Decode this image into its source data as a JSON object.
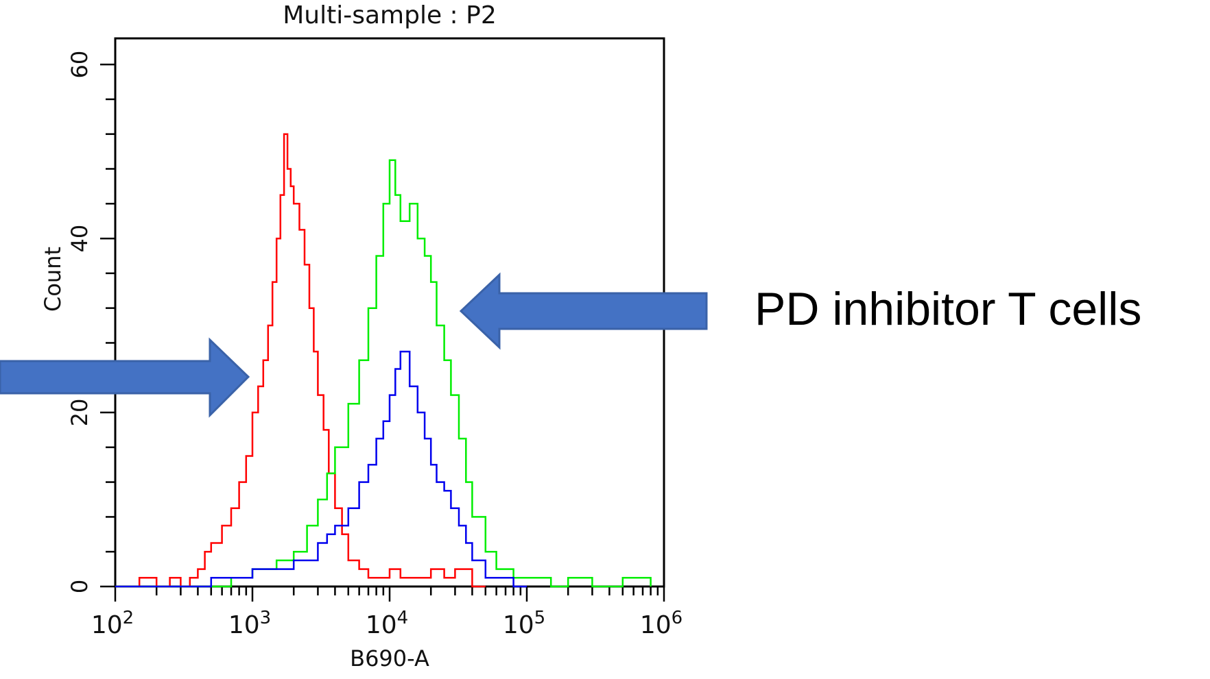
{
  "chart_data": {
    "type": "line",
    "title": "Multi-sample : P2",
    "xlabel": "B690-A",
    "ylabel": "Count",
    "x_scale": "log",
    "xlim": [
      100,
      1000000
    ],
    "ylim": [
      0,
      63
    ],
    "x_ticks": [
      {
        "mantissa": "10",
        "exp": "2",
        "value": 100
      },
      {
        "mantissa": "10",
        "exp": "3",
        "value": 1000
      },
      {
        "mantissa": "10",
        "exp": "4",
        "value": 10000
      },
      {
        "mantissa": "10",
        "exp": "5",
        "value": 100000
      },
      {
        "mantissa": "10",
        "exp": "6",
        "value": 1000000
      }
    ],
    "y_ticks": [
      0,
      20,
      40,
      60
    ],
    "grid": false,
    "series": [
      {
        "color": "#ff0000",
        "x": [
          100,
          150,
          200,
          250,
          300,
          350,
          400,
          450,
          500,
          600,
          700,
          800,
          900,
          1000,
          1100,
          1200,
          1300,
          1400,
          1500,
          1600,
          1700,
          1800,
          1900,
          2000,
          2200,
          2400,
          2600,
          2800,
          3000,
          3300,
          3600,
          4000,
          4500,
          5000,
          6000,
          7000,
          8000,
          10000,
          12000,
          15000,
          20000,
          25000,
          30000,
          40000,
          50000
        ],
        "y": [
          0,
          1,
          0,
          1,
          0,
          1,
          2,
          4,
          5,
          7,
          9,
          12,
          15,
          20,
          23,
          26,
          30,
          35,
          40,
          45,
          52,
          48,
          46,
          44,
          41,
          37,
          32,
          27,
          22,
          18,
          13,
          9,
          6,
          3,
          2,
          1,
          1,
          2,
          1,
          1,
          2,
          1,
          2,
          0,
          0
        ]
      },
      {
        "color": "#00ee00",
        "x": [
          100,
          300,
          500,
          700,
          900,
          1000,
          1200,
          1500,
          2000,
          2500,
          3000,
          3500,
          4000,
          5000,
          6000,
          7000,
          8000,
          9000,
          10000,
          11000,
          12000,
          14000,
          16000,
          18000,
          20000,
          22000,
          25000,
          28000,
          32000,
          36000,
          40000,
          50000,
          60000,
          80000,
          100000,
          150000,
          200000,
          300000,
          500000,
          800000
        ],
        "y": [
          0,
          0,
          0,
          1,
          1,
          2,
          2,
          3,
          4,
          7,
          10,
          13,
          16,
          21,
          26,
          32,
          38,
          44,
          49,
          45,
          42,
          44,
          40,
          38,
          35,
          30,
          26,
          22,
          17,
          12,
          8,
          4,
          2,
          1,
          1,
          0,
          1,
          0,
          1,
          0
        ]
      },
      {
        "color": "#0000ee",
        "x": [
          100,
          300,
          500,
          800,
          1000,
          1200,
          1500,
          2000,
          2500,
          3000,
          3500,
          4000,
          5000,
          6000,
          7000,
          8000,
          9000,
          10000,
          11000,
          12000,
          14000,
          16000,
          18000,
          20000,
          22000,
          25000,
          28000,
          32000,
          36000,
          40000,
          50000,
          60000,
          80000,
          100000
        ],
        "y": [
          0,
          0,
          1,
          1,
          2,
          2,
          2,
          3,
          3,
          5,
          6,
          7,
          9,
          12,
          14,
          17,
          19,
          22,
          25,
          27,
          23,
          20,
          17,
          14,
          12,
          11,
          9,
          7,
          5,
          3,
          1,
          1,
          0,
          0
        ]
      }
    ]
  },
  "annotation": {
    "label": "PD inhibitor T cells",
    "arrow_color": "#4472c4",
    "arrow_border": "#3a62a8"
  }
}
